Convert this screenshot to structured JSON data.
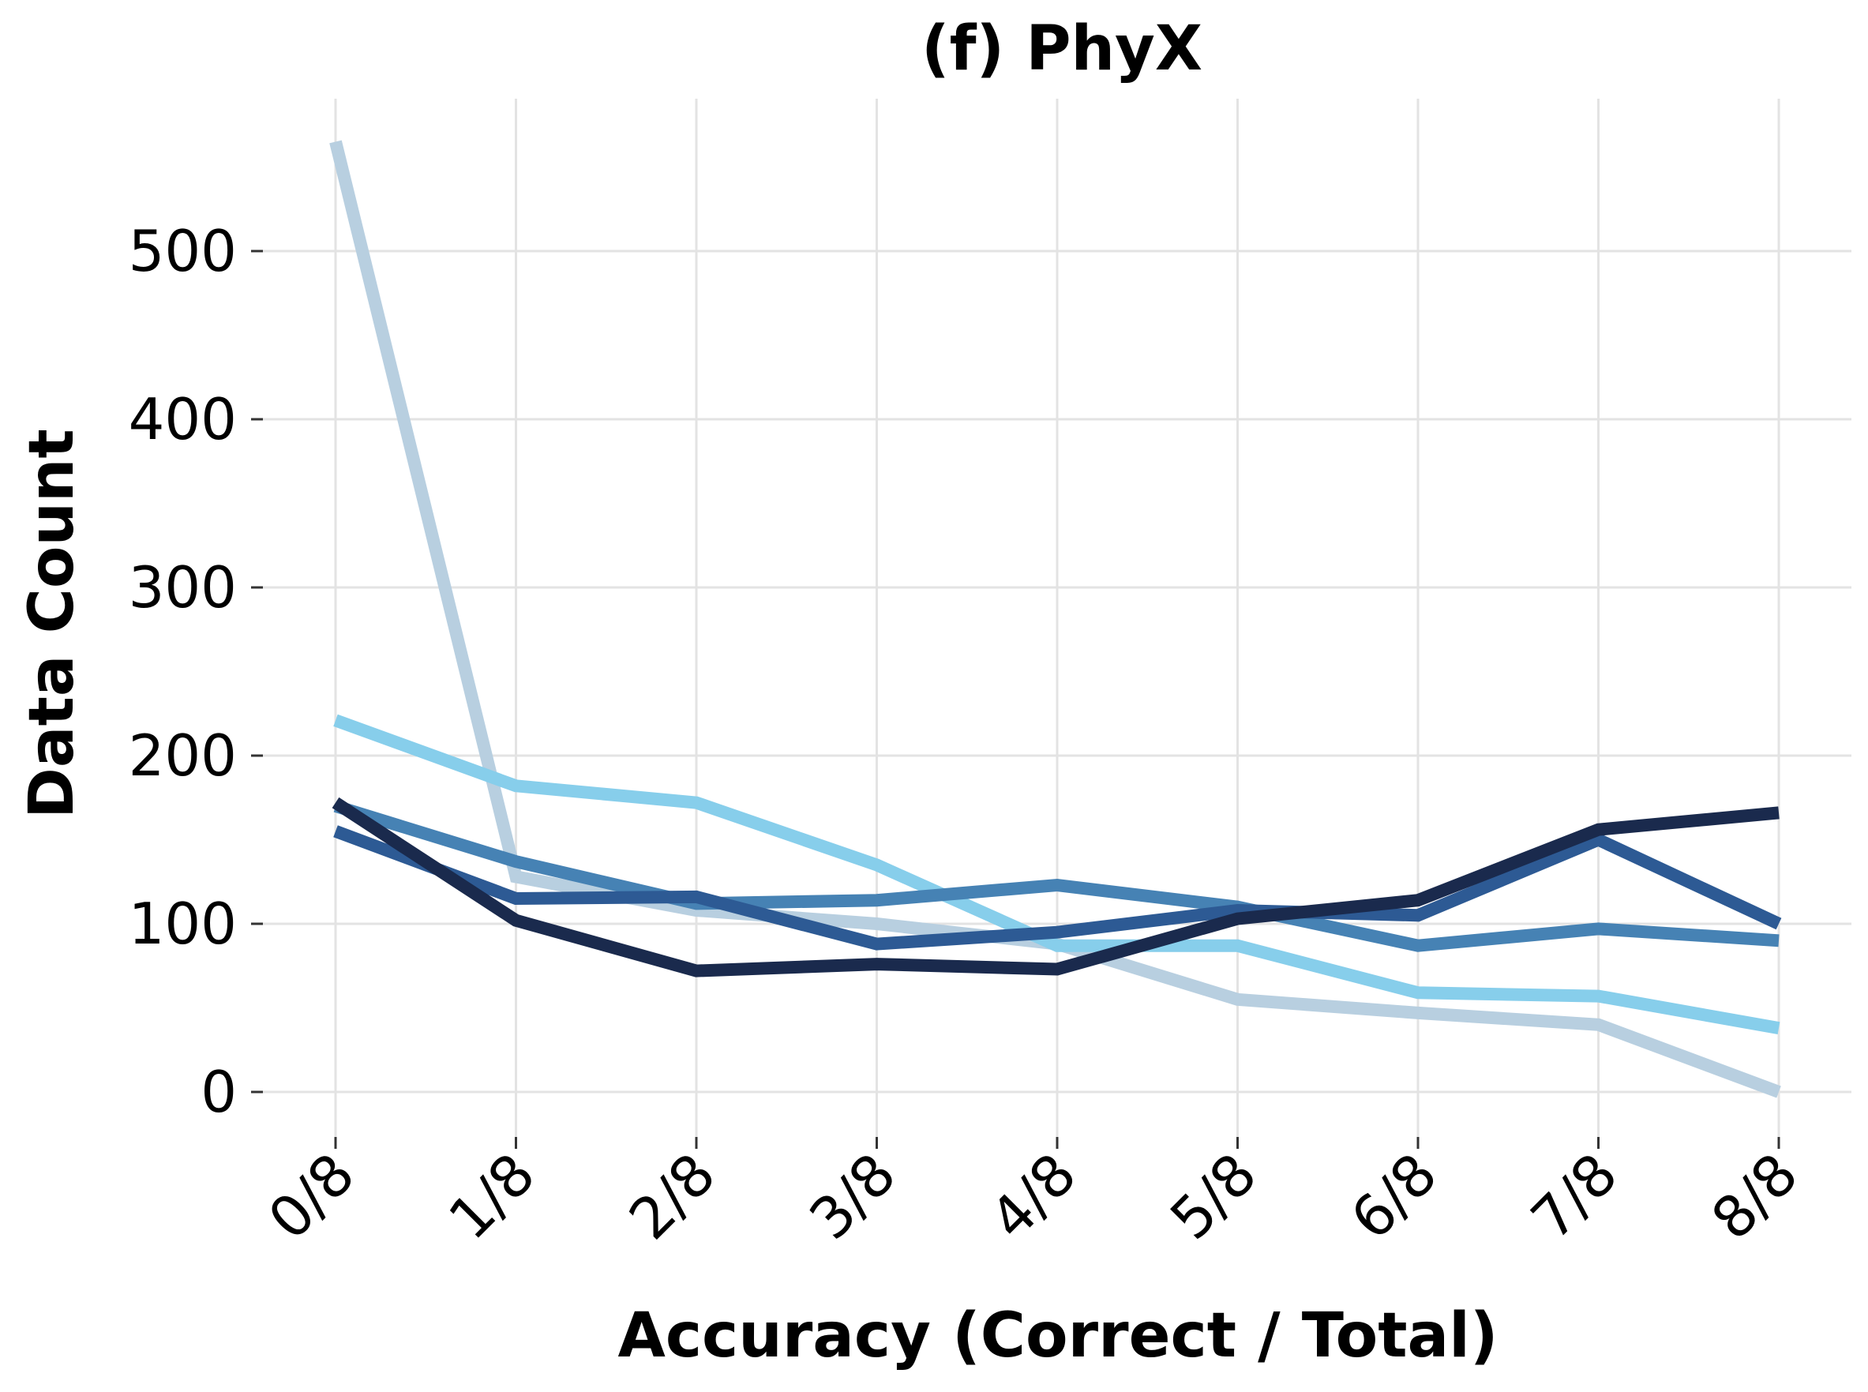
{
  "chart_data": {
    "type": "line",
    "title": "(f) PhyX",
    "xlabel": "Accuracy (Correct / Total)",
    "ylabel": "Data Count",
    "categories": [
      "0/8",
      "1/8",
      "2/8",
      "3/8",
      "4/8",
      "5/8",
      "6/8",
      "7/8",
      "8/8"
    ],
    "yticks": [
      0,
      100,
      200,
      300,
      400,
      500
    ],
    "ylim": [
      -28,
      590
    ],
    "grid": true,
    "series": [
      {
        "color": "#b8cfe0",
        "values": [
          565,
          128,
          108,
          100,
          88,
          55,
          47,
          40,
          0
        ]
      },
      {
        "color": "#87ceeb",
        "values": [
          221,
          182,
          172,
          135,
          87,
          87,
          59,
          57,
          38
        ]
      },
      {
        "color": "#4682b4",
        "values": [
          170,
          137,
          112,
          114,
          123,
          110,
          87,
          97,
          90
        ]
      },
      {
        "color": "#2d5a94",
        "values": [
          155,
          115,
          116,
          88,
          95,
          108,
          105,
          150,
          100
        ]
      },
      {
        "color": "#1a2a4d",
        "values": [
          172,
          102,
          72,
          76,
          73,
          103,
          114,
          156,
          166
        ]
      }
    ]
  }
}
